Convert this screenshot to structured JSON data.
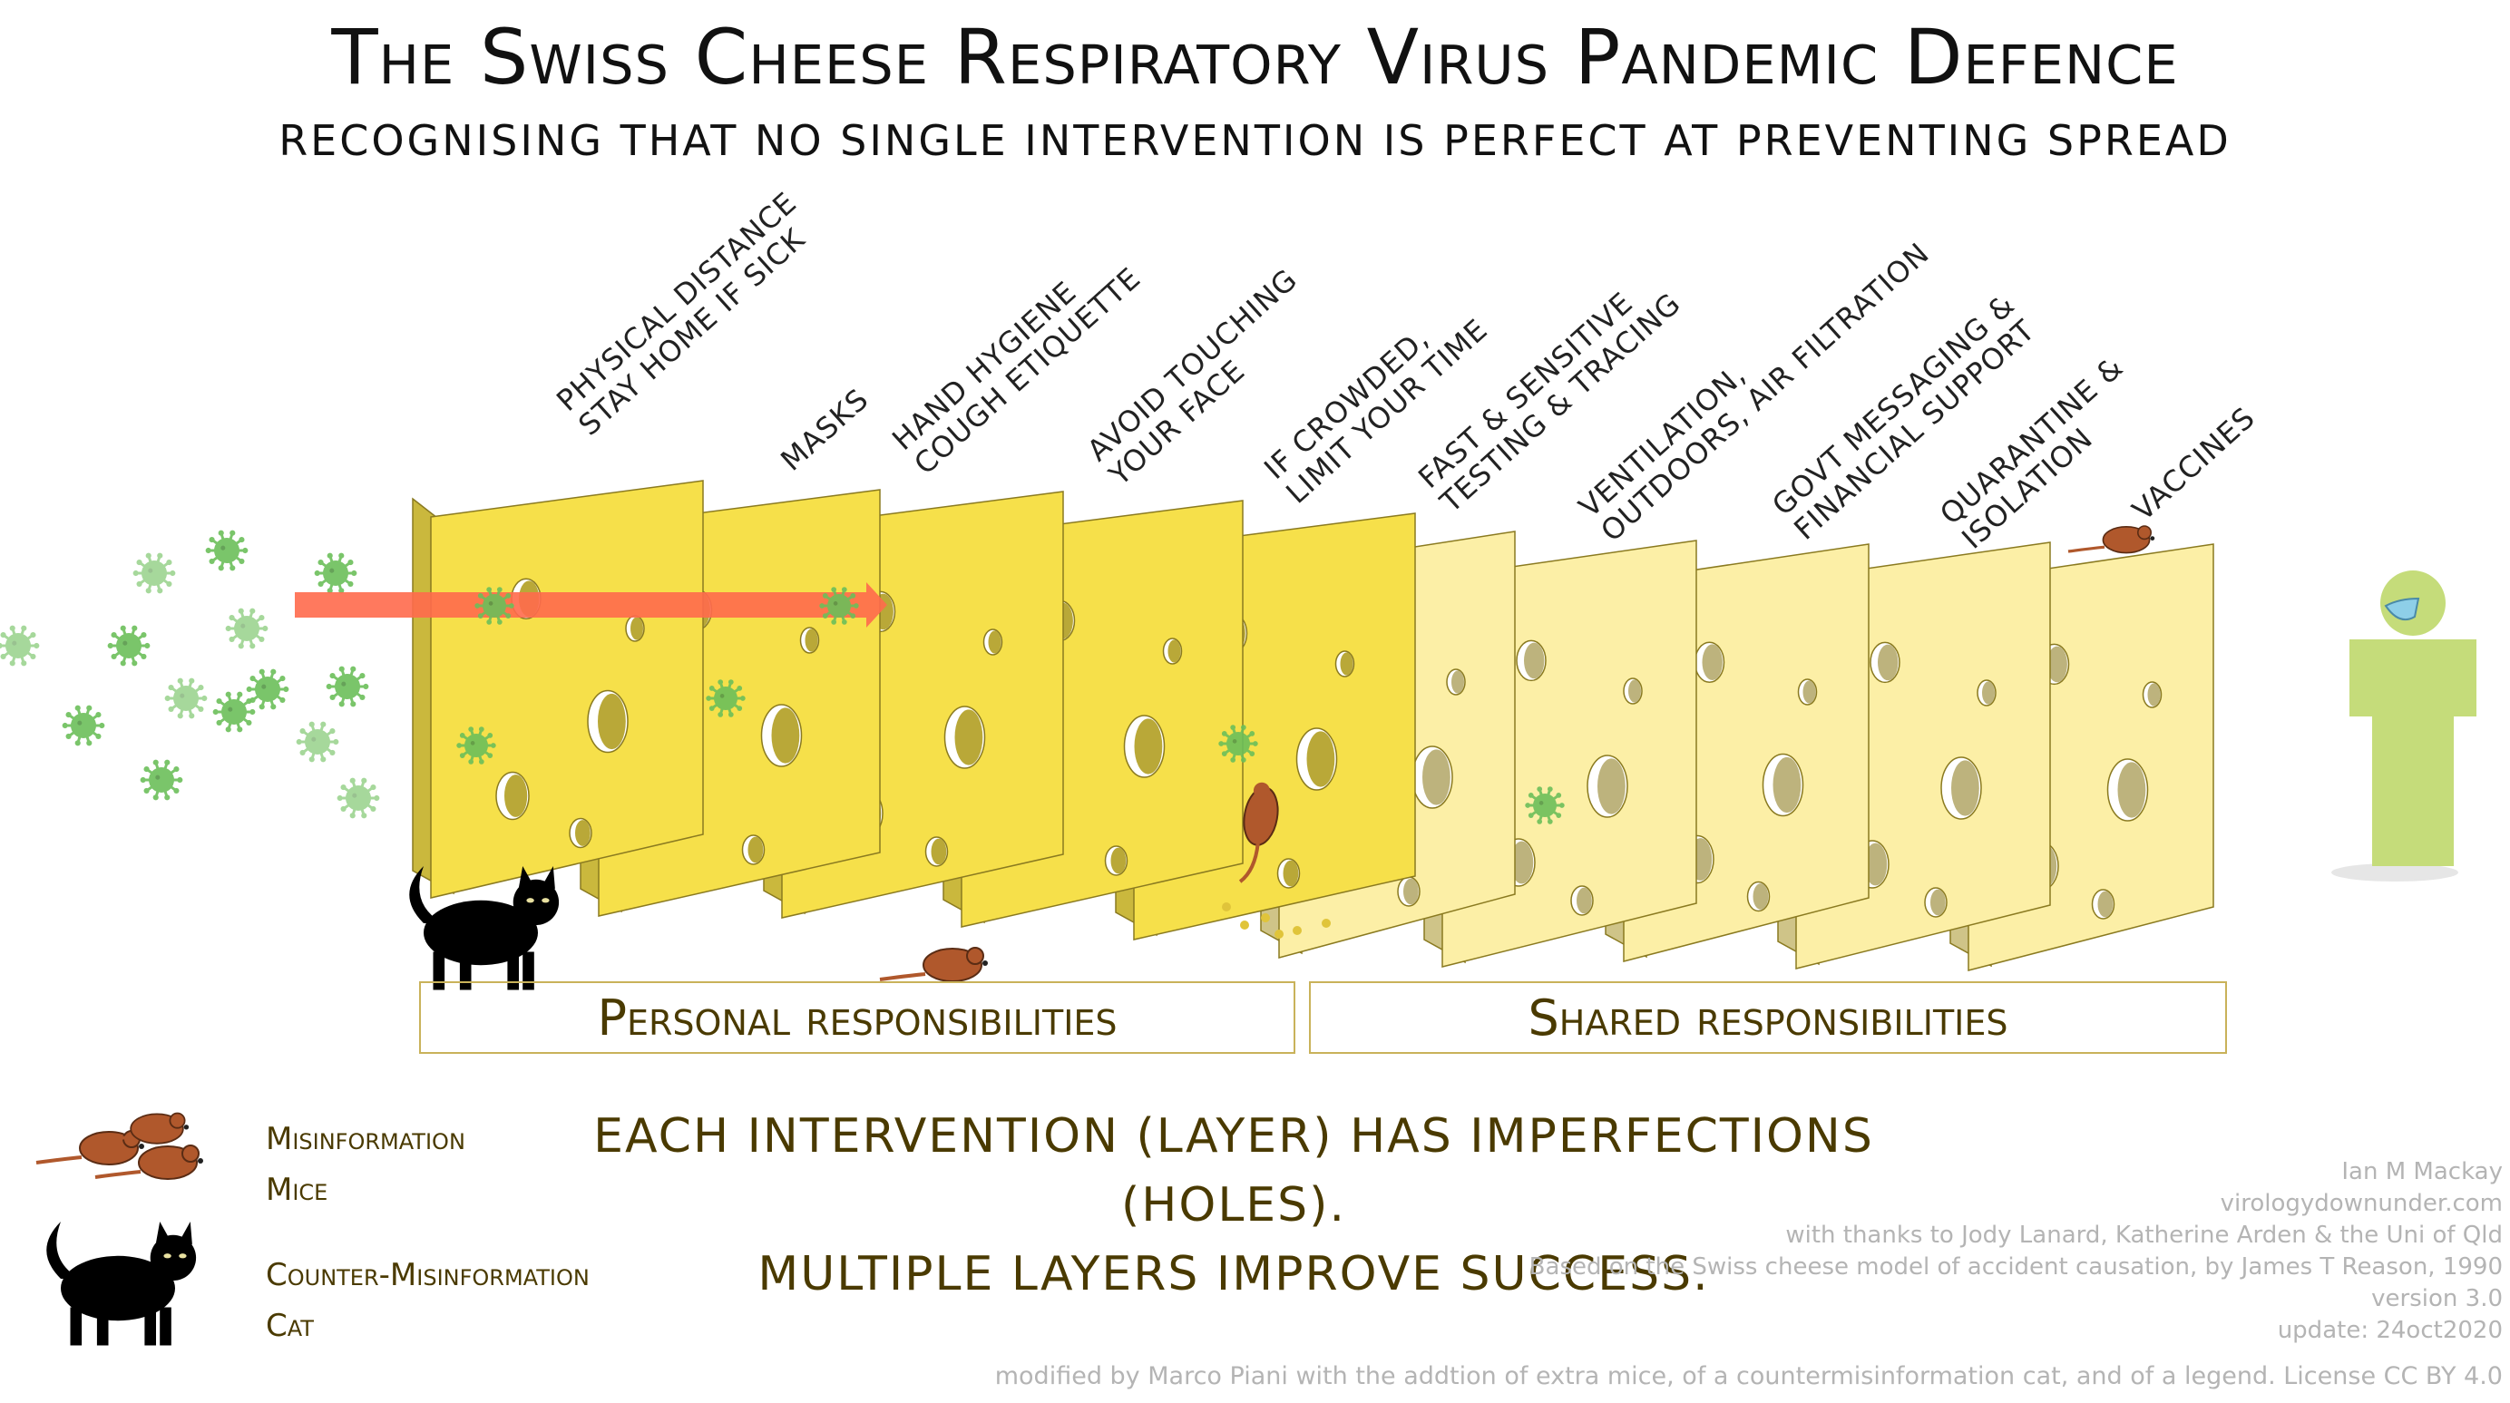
{
  "title": "The Swiss Cheese Respiratory Virus Pandemic Defence",
  "subtitle": "RECOGNISING THAT NO SINGLE INTERVENTION IS PERFECT AT PREVENTING SPREAD",
  "layers": [
    {
      "label": "PHYSICAL DISTANCE\nSTAY HOME IF SICK",
      "group": "personal"
    },
    {
      "label": "MASKS",
      "group": "personal"
    },
    {
      "label": "HAND HYGIENE\nCOUGH ETIQUETTE",
      "group": "personal"
    },
    {
      "label": "AVOID TOUCHING\nYOUR FACE",
      "group": "personal"
    },
    {
      "label": "IF CROWDED,\nLIMIT YOUR TIME",
      "group": "personal"
    },
    {
      "label": "FAST & SENSITIVE\nTESTING & TRACING",
      "group": "shared"
    },
    {
      "label": "VENTILATION,\nOUTDOORS, AIR FILTRATION",
      "group": "shared"
    },
    {
      "label": "GOVT MESSAGING &\nFINANCIAL SUPPORT",
      "group": "shared"
    },
    {
      "label": "QUARANTINE &\nISOLATION",
      "group": "shared"
    },
    {
      "label": "VACCINES",
      "group": "shared"
    }
  ],
  "bands": {
    "personal": "Personal responsibilities",
    "shared": "Shared responsibilities"
  },
  "message": {
    "line1": "EACH INTERVENTION (LAYER) HAS IMPERFECTIONS (HOLES).",
    "line2": "MULTIPLE LAYERS IMPROVE SUCCESS."
  },
  "legend": {
    "mice_line1": "Misinformation",
    "mice_line2": "Mice",
    "cat_line1": "Counter-Misinformation",
    "cat_line2": "Cat"
  },
  "credits": {
    "author": "Ian M Mackay",
    "site": "virologydownunder.com",
    "thanks": "with thanks to Jody Lanard, Katherine Arden & the Uni of Qld",
    "basis": "Based on the Swiss cheese model of accident causation, by James T Reason, 1990",
    "version": "version 3.0",
    "update": "update: 24oct2020"
  },
  "footer": "modified by Marco Piani with the addtion of extra mice, of a countermisinformation cat, and of a legend. License CC BY 4.0",
  "colors": {
    "cheese_personal": "#f6e04a",
    "cheese_shared": "#fcefa6",
    "band_personal": "#f7e13d",
    "band_shared": "#fbf0a8",
    "virus": "#6cbf5a",
    "arrow": "#ff6a4d",
    "mouse": "#b0582c",
    "cat": "#000000",
    "person": "#c5dc7a",
    "mask": "#8ecfe8"
  }
}
